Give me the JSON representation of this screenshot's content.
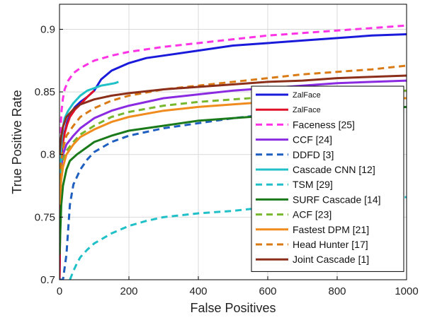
{
  "chart_data": {
    "type": "line",
    "title": "",
    "xlabel": "False Positives",
    "ylabel": "True Positive Rate",
    "xlim": [
      0,
      1000
    ],
    "ylim": [
      0.7,
      0.92
    ],
    "xticks": [
      "0",
      "200",
      "400",
      "600",
      "800",
      "1000"
    ],
    "yticks": [
      "0.7",
      "0.75",
      "0.8",
      "0.85",
      "0.9"
    ],
    "grid": true,
    "legend_position": "right-middle",
    "series": [
      {
        "name": "ZalFace",
        "color": "#1a1adb",
        "dash": "solid",
        "width": 3,
        "x": [
          0,
          3,
          6,
          10,
          15,
          22,
          30,
          45,
          60,
          80,
          100,
          120,
          150,
          200,
          250,
          300,
          400,
          500,
          600,
          700,
          800,
          900,
          1000
        ],
        "y": [
          0.7,
          0.77,
          0.8,
          0.81,
          0.818,
          0.826,
          0.832,
          0.838,
          0.842,
          0.846,
          0.851,
          0.86,
          0.867,
          0.873,
          0.877,
          0.879,
          0.883,
          0.887,
          0.889,
          0.891,
          0.893,
          0.895,
          0.896
        ]
      },
      {
        "name": "ZalFace",
        "color": "#e0102a",
        "dash": "solid",
        "width": 3,
        "x": [
          0,
          3,
          6,
          10,
          15,
          22,
          30,
          45,
          60,
          80,
          100
        ],
        "y": [
          0.7,
          0.77,
          0.8,
          0.81,
          0.817,
          0.824,
          0.83,
          0.836,
          0.84,
          0.846,
          0.851
        ]
      },
      {
        "name": "Faceness [25]",
        "color": "#ff33e6",
        "dash": "dash",
        "width": 3,
        "x": [
          0,
          3,
          6,
          10,
          15,
          25,
          40,
          60,
          80,
          100,
          150,
          200,
          300,
          400,
          500,
          600,
          700,
          800,
          900,
          1000
        ],
        "y": [
          0.8,
          0.82,
          0.835,
          0.845,
          0.852,
          0.859,
          0.865,
          0.869,
          0.872,
          0.875,
          0.879,
          0.882,
          0.886,
          0.889,
          0.892,
          0.895,
          0.897,
          0.899,
          0.901,
          0.903
        ]
      },
      {
        "name": "CCF [24]",
        "color": "#8a2be2",
        "dash": "solid",
        "width": 3,
        "x": [
          0,
          5,
          10,
          20,
          40,
          60,
          100,
          150,
          200,
          300,
          400,
          500,
          600,
          700,
          800,
          900,
          1000
        ],
        "y": [
          0.77,
          0.79,
          0.8,
          0.808,
          0.815,
          0.821,
          0.829,
          0.835,
          0.839,
          0.845,
          0.848,
          0.851,
          0.853,
          0.855,
          0.857,
          0.858,
          0.859
        ]
      },
      {
        "name": "DDFD [3]",
        "color": "#1f5fbf",
        "dash": "dash",
        "width": 3,
        "x": [
          0,
          10,
          20,
          30,
          40,
          60,
          80,
          100,
          150,
          200,
          300,
          400,
          500,
          600,
          700,
          800,
          900,
          1000
        ],
        "y": [
          0.7,
          0.7,
          0.72,
          0.76,
          0.776,
          0.788,
          0.796,
          0.802,
          0.81,
          0.815,
          0.821,
          0.825,
          0.829,
          0.832,
          0.834,
          0.836,
          0.838,
          0.84
        ]
      },
      {
        "name": "Cascade CNN [12]",
        "color": "#20c0c8",
        "dash": "solid",
        "width": 3,
        "x": [
          0,
          3,
          6,
          10,
          15,
          25,
          40,
          60,
          80,
          100,
          120,
          140,
          160,
          170
        ],
        "y": [
          0.76,
          0.79,
          0.81,
          0.822,
          0.829,
          0.835,
          0.841,
          0.847,
          0.851,
          0.853,
          0.855,
          0.856,
          0.857,
          0.858
        ]
      },
      {
        "name": "TSM [29]",
        "color": "#20c0c8",
        "dash": "dash",
        "width": 3,
        "x": [
          30,
          40,
          50,
          60,
          80,
          100,
          150,
          200,
          250,
          300,
          400,
          500,
          600,
          700,
          800,
          900,
          1000
        ],
        "y": [
          0.7,
          0.707,
          0.713,
          0.718,
          0.724,
          0.729,
          0.737,
          0.743,
          0.747,
          0.75,
          0.753,
          0.755,
          0.758,
          0.76,
          0.762,
          0.764,
          0.766
        ]
      },
      {
        "name": "SURF Cascade [14]",
        "color": "#1a7a1a",
        "dash": "solid",
        "width": 3,
        "x": [
          0,
          5,
          10,
          20,
          30,
          50,
          80,
          100,
          150,
          200,
          300,
          400,
          500,
          600,
          700,
          800,
          900,
          1000
        ],
        "y": [
          0.72,
          0.76,
          0.775,
          0.788,
          0.795,
          0.8,
          0.806,
          0.81,
          0.815,
          0.819,
          0.823,
          0.827,
          0.829,
          0.831,
          0.833,
          0.834,
          0.836,
          0.838
        ]
      },
      {
        "name": "ACF [23]",
        "color": "#77b82e",
        "dash": "dash",
        "width": 3,
        "x": [
          0,
          5,
          10,
          20,
          40,
          60,
          100,
          150,
          200,
          300,
          400,
          500,
          600,
          700,
          800,
          900,
          1000
        ],
        "y": [
          0.77,
          0.785,
          0.795,
          0.803,
          0.81,
          0.816,
          0.823,
          0.83,
          0.834,
          0.839,
          0.842,
          0.844,
          0.846,
          0.847,
          0.849,
          0.85,
          0.851
        ]
      },
      {
        "name": "Fastest DPM [21]",
        "color": "#f08c1e",
        "dash": "solid",
        "width": 3,
        "x": [
          0,
          5,
          10,
          20,
          40,
          60,
          100,
          150,
          200,
          300,
          400,
          500,
          600,
          700,
          800,
          900,
          1000
        ],
        "y": [
          0.76,
          0.78,
          0.79,
          0.8,
          0.808,
          0.814,
          0.82,
          0.826,
          0.83,
          0.835,
          0.838,
          0.84,
          0.842,
          0.843,
          0.844,
          0.845,
          0.845
        ]
      },
      {
        "name": "Head Hunter [17]",
        "color": "#d97a14",
        "dash": "dash",
        "width": 3,
        "x": [
          0,
          5,
          10,
          20,
          40,
          60,
          100,
          150,
          200,
          300,
          400,
          500,
          600,
          700,
          800,
          900,
          1000
        ],
        "y": [
          0.78,
          0.795,
          0.805,
          0.815,
          0.823,
          0.83,
          0.837,
          0.843,
          0.847,
          0.852,
          0.855,
          0.858,
          0.861,
          0.864,
          0.866,
          0.868,
          0.871
        ]
      },
      {
        "name": "Joint Cascade [1]",
        "color": "#8b2e1a",
        "dash": "solid",
        "width": 3,
        "x": [
          0,
          5,
          10,
          20,
          40,
          60,
          100,
          150,
          200,
          300,
          400,
          500,
          600,
          700,
          800,
          900,
          1000
        ],
        "y": [
          0.8,
          0.815,
          0.822,
          0.83,
          0.836,
          0.84,
          0.844,
          0.847,
          0.849,
          0.852,
          0.854,
          0.856,
          0.858,
          0.859,
          0.861,
          0.862,
          0.863
        ]
      }
    ]
  }
}
